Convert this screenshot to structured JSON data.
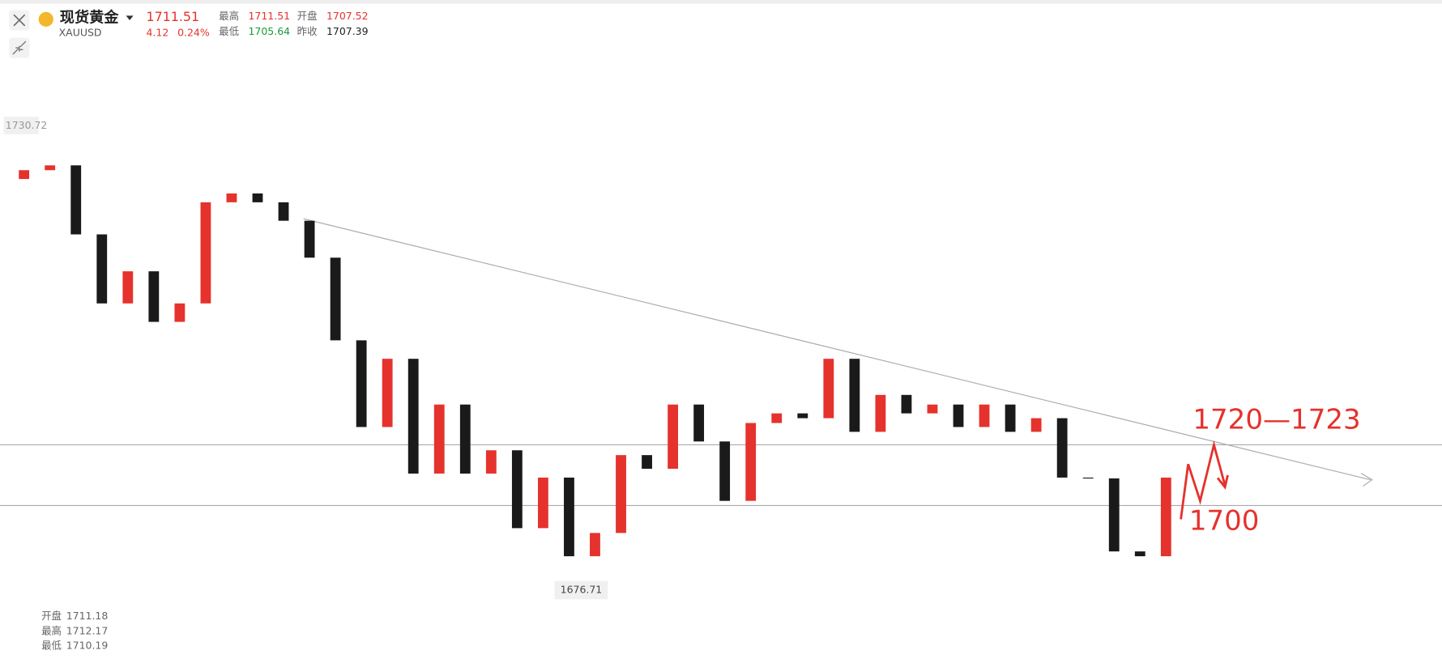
{
  "header": {
    "name": "现货黄金",
    "symbol": "XAUUSD",
    "price": "1711.51",
    "change": "4.12",
    "change_pct": "0.24%",
    "stats": [
      {
        "label": "最高",
        "value": "1711.51"
      },
      {
        "label": "开盘",
        "value": "1707.52"
      },
      {
        "label": "最低",
        "value": "1705.64"
      },
      {
        "label": "昨收",
        "value": "1707.39"
      }
    ]
  },
  "chart_data": {
    "type": "candlestick",
    "open": [
      1724.0,
      1725.1,
      1725.7,
      1717.1,
      1708.5,
      1712.5,
      1706.2,
      1708.5,
      1721.1,
      1722.2,
      1721.1,
      1718.8,
      1714.2,
      1703.9,
      1693.1,
      1701.6,
      1687.3,
      1695.9,
      1687.3,
      1690.2,
      1680.5,
      1686.8,
      1677.0,
      1679.9,
      1689.6,
      1687.9,
      1695.9,
      1691.3,
      1683.9,
      1693.6,
      1694.8,
      1694.2,
      1701.6,
      1692.5,
      1697.1,
      1694.8,
      1695.9,
      1693.1,
      1695.9,
      1692.5,
      1694.2,
      1686.8,
      1686.7,
      1677.6,
      1677.0
    ],
    "close": [
      1725.1,
      1725.7,
      1717.1,
      1708.5,
      1712.5,
      1706.2,
      1708.5,
      1721.1,
      1722.2,
      1721.1,
      1718.8,
      1714.2,
      1703.9,
      1693.1,
      1701.6,
      1687.3,
      1695.9,
      1687.3,
      1690.2,
      1680.5,
      1686.8,
      1677.0,
      1679.9,
      1689.6,
      1687.9,
      1695.9,
      1691.3,
      1683.9,
      1693.6,
      1694.8,
      1694.2,
      1701.6,
      1692.5,
      1697.1,
      1694.8,
      1695.9,
      1693.1,
      1695.9,
      1692.5,
      1694.2,
      1686.8,
      1686.7,
      1677.6,
      1677.0,
      1686.8
    ],
    "ylim": [
      1664.2,
      1746.3
    ],
    "up_color": "#e5322d",
    "down_color": "#1a1a1a",
    "high_label": "1730.72",
    "low_label": "1676.71",
    "annotations": [
      "1720—1723",
      "1700"
    ]
  },
  "ohlc_tooltip": [
    {
      "label": "开盘",
      "value": "1711.18"
    },
    {
      "label": "最高",
      "value": "1712.17"
    },
    {
      "label": "最低",
      "value": "1710.19"
    }
  ]
}
